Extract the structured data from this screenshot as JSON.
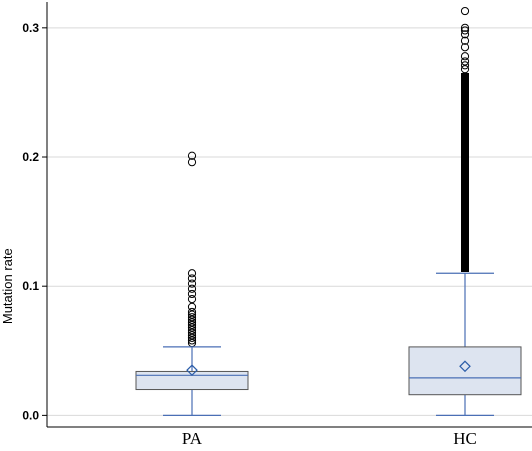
{
  "chart_data": {
    "type": "box",
    "title": "",
    "xlabel": "",
    "ylabel": "Mutation rate",
    "ylim": [
      -0.009,
      0.32
    ],
    "yticks": [
      0.0,
      0.1,
      0.2,
      0.3
    ],
    "ytick_labels": [
      "0.0",
      "0.1",
      "0.2",
      "0.3"
    ],
    "grid": true,
    "colors": {
      "box_fill": "#dde4f0",
      "box_stroke": "#555555",
      "whisker": "#4a6fb5",
      "median": "#4a6fb5",
      "mean_marker": "#2a5ca8",
      "outlier_stroke": "#000000",
      "grid": "#d9d9d9",
      "axis": "#000000"
    },
    "categories": [
      "PA",
      "HC"
    ],
    "boxes": [
      {
        "name": "PA",
        "whisker_low": 0.0,
        "q1": 0.02,
        "median": 0.031,
        "q3": 0.034,
        "whisker_high": 0.053,
        "mean": 0.035,
        "outliers": [
          0.056,
          0.058,
          0.06,
          0.062,
          0.064,
          0.066,
          0.068,
          0.07,
          0.072,
          0.074,
          0.076,
          0.078,
          0.08,
          0.084,
          0.09,
          0.094,
          0.098,
          0.102,
          0.106,
          0.11,
          0.196,
          0.201
        ]
      },
      {
        "name": "HC",
        "whisker_low": 0.0,
        "q1": 0.016,
        "median": 0.029,
        "q3": 0.053,
        "whisker_high": 0.11,
        "mean": 0.038,
        "outlier_dense_range": [
          0.111,
          0.265
        ],
        "outliers": [
          0.268,
          0.271,
          0.274,
          0.278,
          0.285,
          0.29,
          0.295,
          0.298,
          0.3,
          0.313
        ]
      }
    ]
  }
}
